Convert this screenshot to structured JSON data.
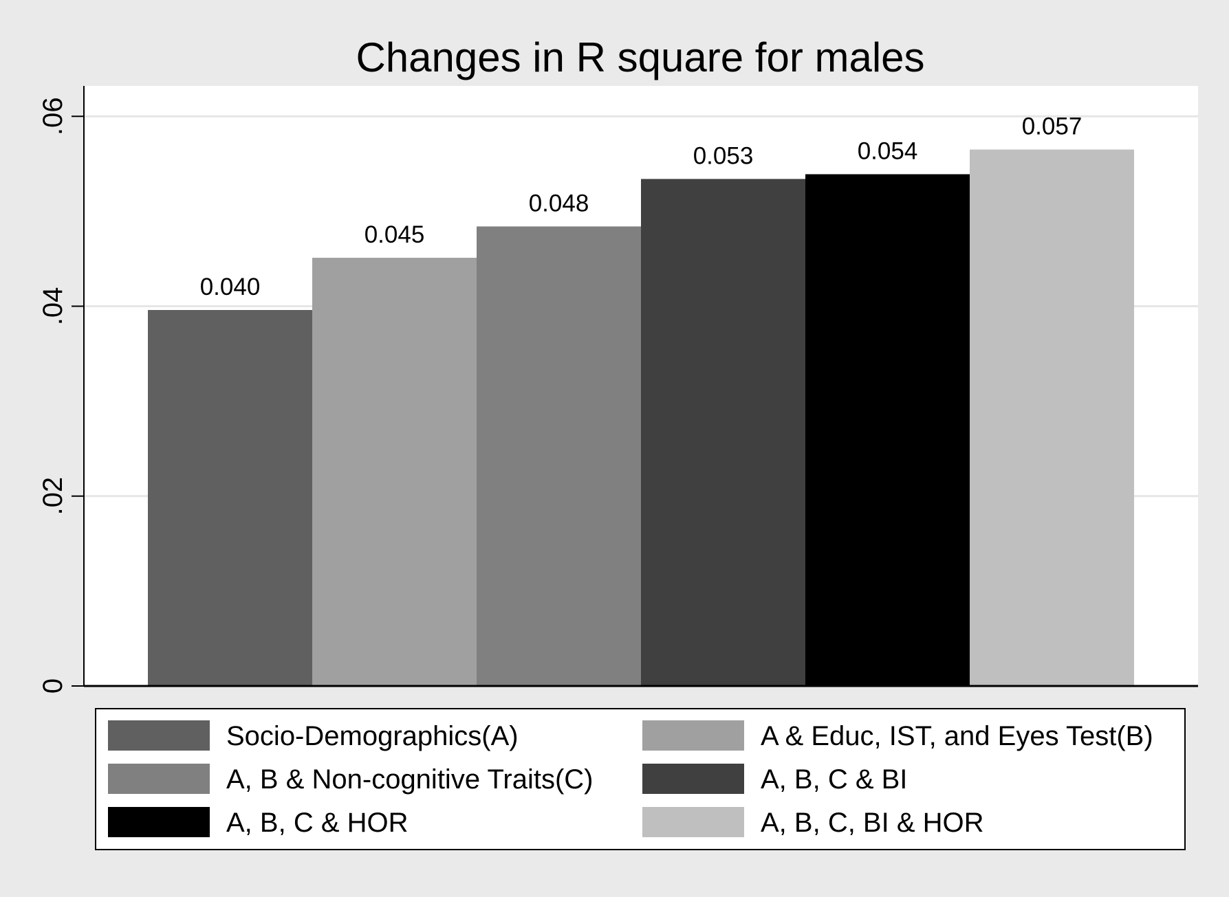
{
  "chart_data": {
    "type": "bar",
    "title": "Changes in R square for males",
    "xlabel": "",
    "ylabel": "",
    "ylim": [
      0,
      0.0632
    ],
    "yticks": [
      {
        "value": 0,
        "label": "0"
      },
      {
        "value": 0.02,
        "label": ".02"
      },
      {
        "value": 0.04,
        "label": ".04"
      },
      {
        "value": 0.06,
        "label": ".06"
      }
    ],
    "grid": true,
    "legend_position": "bottom",
    "legend_columns": 2,
    "series": [
      {
        "name": "Socio-Demographics(A)",
        "value": 0.0396,
        "label": "0.040",
        "color": "#606060"
      },
      {
        "name": "A & Educ, IST, and Eyes Test(B)",
        "value": 0.0451,
        "label": "0.045",
        "color": "#a0a0a0"
      },
      {
        "name": "A, B & Non-cognitive Traits(C)",
        "value": 0.0484,
        "label": "0.048",
        "color": "#808080"
      },
      {
        "name": "A, B, C & BI",
        "value": 0.0534,
        "label": "0.053",
        "color": "#404040"
      },
      {
        "name": "A, B, C & HOR",
        "value": 0.0539,
        "label": "0.054",
        "color": "#000000"
      },
      {
        "name": "A, B, C, BI & HOR",
        "value": 0.0565,
        "label": "0.057",
        "color": "#bfbfbf"
      }
    ]
  },
  "colors": {
    "background": "#eaeaea",
    "plot_background": "#ffffff",
    "gridline": "#e6e6e6",
    "axis": "#000000",
    "text": "#000000"
  }
}
